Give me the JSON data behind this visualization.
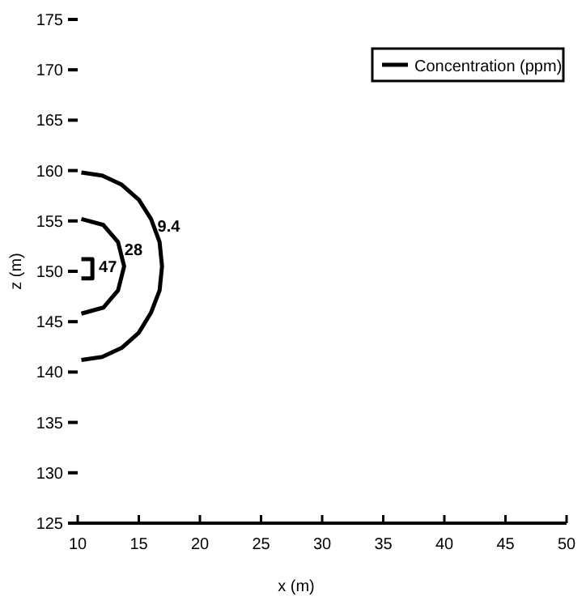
{
  "chart_data": {
    "type": "line",
    "xlabel": "x (m)",
    "ylabel": "z (m)",
    "xlim": [
      10,
      50
    ],
    "xticks": [
      10,
      15,
      20,
      25,
      30,
      35,
      40,
      45,
      50
    ],
    "ylim": [
      125,
      175
    ],
    "yticks": [
      125,
      130,
      135,
      140,
      145,
      150,
      155,
      160,
      165,
      170,
      175
    ],
    "legend": "top right",
    "grid": false,
    "marker": "none",
    "line_style": "solid",
    "series": [
      {
        "name": "Concentration (ppm)",
        "color": "#000000",
        "x": [
          10.3,
          12.0,
          13.6,
          15.0,
          16.0,
          16.7,
          16.9,
          16.7,
          16.0,
          15.0,
          13.6,
          12.0,
          10.3,
          null,
          10.3,
          12.1,
          13.3,
          13.8,
          13.3,
          12.1,
          10.3,
          null,
          10.3,
          11.2,
          11.2,
          10.3
        ],
        "values": [
          159.8,
          159.5,
          158.6,
          157.1,
          155.2,
          152.9,
          150.5,
          148.1,
          145.9,
          143.9,
          142.4,
          141.5,
          141.2,
          null,
          155.2,
          154.6,
          152.9,
          150.5,
          148.1,
          146.4,
          145.8,
          null,
          151.2,
          151.2,
          149.3,
          149.3
        ]
      }
    ],
    "annotations": [
      "9.4",
      "28",
      "47"
    ]
  }
}
